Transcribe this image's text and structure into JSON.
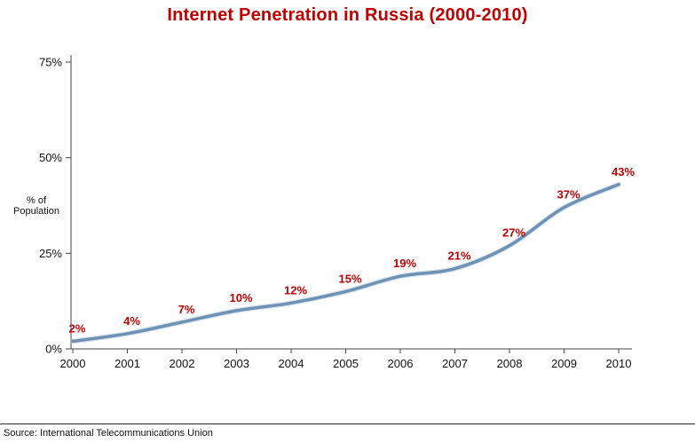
{
  "title": "Internet Penetration in Russia (2000-2010)",
  "title_color": "#C00000",
  "ylabel_lines": [
    "% of",
    "Population"
  ],
  "footer": {
    "source": "Source: International Telecommunications Union"
  },
  "chart_data": {
    "type": "line",
    "title": "Internet Penetration in Russia (2000-2010)",
    "xlabel": "",
    "ylabel": "% of Population",
    "categories": [
      "2000",
      "2001",
      "2002",
      "2003",
      "2004",
      "2005",
      "2006",
      "2007",
      "2008",
      "2009",
      "2010"
    ],
    "values": [
      2,
      4,
      7,
      10,
      12,
      15,
      19,
      21,
      27,
      37,
      43
    ],
    "point_labels": [
      "2%",
      "4%",
      "7%",
      "10%",
      "12%",
      "15%",
      "19%",
      "21%",
      "27%",
      "37%",
      "43%"
    ],
    "ylim": [
      0,
      75
    ],
    "yticks": [
      0,
      25,
      50,
      75
    ],
    "ytick_labels": [
      "0%",
      "25%",
      "50%",
      "75%"
    ],
    "grid": false,
    "legend": "none",
    "line_color": "#6D92B4",
    "line_halo_color": "#AEC4D6",
    "label_color": "#C00000",
    "axis_color": "#444444",
    "source": "Source: International Telecommunications Union"
  }
}
